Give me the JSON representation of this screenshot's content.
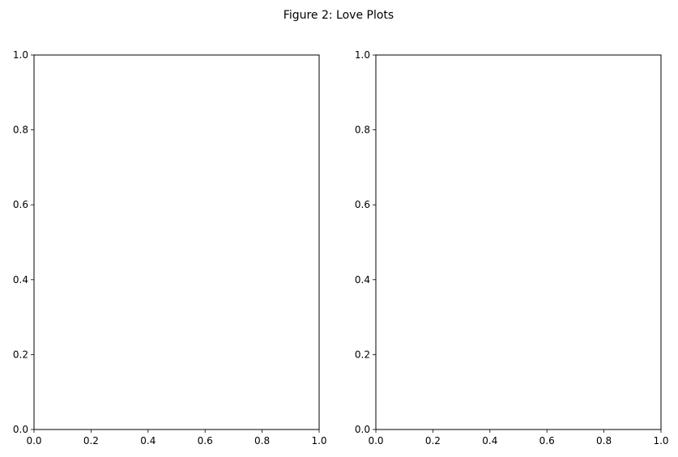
{
  "figure": {
    "title": "Figure 2: Love Plots"
  },
  "chart_data": [
    {
      "type": "scatter",
      "title": "",
      "xlabel": "",
      "ylabel": "",
      "xlim": [
        0,
        1
      ],
      "ylim": [
        0,
        1
      ],
      "xticks": [
        "0.0",
        "0.2",
        "0.4",
        "0.6",
        "0.8",
        "1.0"
      ],
      "yticks": [
        "0.0",
        "0.2",
        "0.4",
        "0.6",
        "0.8",
        "1.0"
      ],
      "grid": false,
      "series": []
    },
    {
      "type": "scatter",
      "title": "",
      "xlabel": "",
      "ylabel": "",
      "xlim": [
        0,
        1
      ],
      "ylim": [
        0,
        1
      ],
      "xticks": [
        "0.0",
        "0.2",
        "0.4",
        "0.6",
        "0.8",
        "1.0"
      ],
      "yticks": [
        "0.0",
        "0.2",
        "0.4",
        "0.6",
        "0.8",
        "1.0"
      ],
      "grid": false,
      "series": []
    }
  ]
}
